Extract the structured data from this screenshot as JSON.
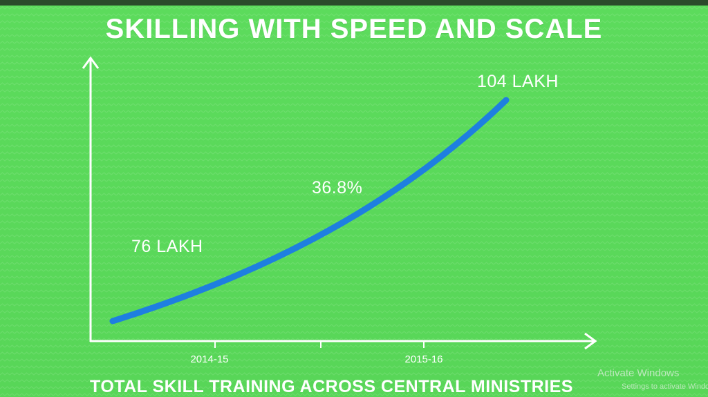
{
  "title": "SKILLING WITH SPEED AND SCALE",
  "subtitle": "TOTAL SKILL TRAINING ACROSS CENTRAL MINISTRIES",
  "watermark": {
    "line1": "Activate Windows",
    "line2": "Settings to activate Windows."
  },
  "colors": {
    "background": "#58d658",
    "curve": "#1e7fe0",
    "axis": "#ffffff",
    "text": "#ffffff"
  },
  "chart_data": {
    "type": "line",
    "x": [
      "2014-15",
      "2015-16"
    ],
    "series": [
      {
        "values": [
          76,
          104
        ]
      }
    ],
    "annotations": {
      "start_label": "76 LAKH",
      "end_label": "104 LAKH",
      "growth_label": "36.8%"
    },
    "grid": false
  }
}
